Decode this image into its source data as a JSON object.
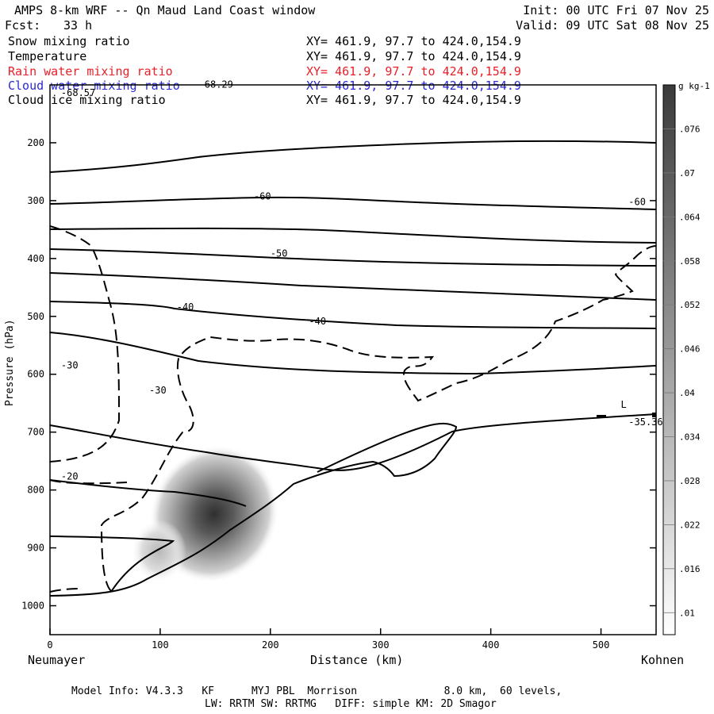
{
  "header": {
    "title": "AMPS 8-km WRF -- Qn Maud Land Coast window",
    "forecast_label": "Fcst:",
    "forecast_hour": "33 h",
    "init": "Init: 00 UTC Fri 07 Nov 25",
    "valid": "Valid: 09 UTC Sat 08 Nov 25"
  },
  "fields": [
    {
      "name": "Snow mixing ratio",
      "xy": "XY= 461.9, 97.7 to 424.0,154.9",
      "color": "#000000"
    },
    {
      "name": "Temperature",
      "xy": "XY= 461.9, 97.7 to 424.0,154.9",
      "color": "#000000"
    },
    {
      "name": "Rain water mixing ratio",
      "xy": "XY= 461.9, 97.7 to 424.0,154.9",
      "color": "#e8202a"
    },
    {
      "name": "Cloud water mixing ratio",
      "xy": "XY= 461.9, 97.7 to 424.0,154.9",
      "color": "#2a2ad0"
    },
    {
      "name": "Cloud ice mixing ratio",
      "xy": "XY= 461.9, 97.7 to 424.0,154.9",
      "color": "#000000"
    }
  ],
  "chart_data": {
    "type": "cross-section contour",
    "ylabel": "Pressure (hPa)",
    "xlabel": "Distance (km)",
    "x_ticks": [
      0,
      100,
      200,
      300,
      400,
      500
    ],
    "y_ticks": [
      200,
      300,
      400,
      500,
      600,
      700,
      800,
      900,
      1000
    ],
    "xlim": [
      0,
      550
    ],
    "ylim": [
      1050,
      100
    ],
    "left_station": "Neumayer",
    "right_station": "Kohnen",
    "temperature_labels": [
      {
        "text": "-68.29",
        "x": 135,
        "p": 105
      },
      {
        "text": "-68.57",
        "x": 10,
        "p": 119
      },
      {
        "text": "-60",
        "x": 185,
        "p": 298
      },
      {
        "text": "-60",
        "x": 525,
        "p": 308
      },
      {
        "text": "-50",
        "x": 200,
        "p": 397
      },
      {
        "text": "-40",
        "x": 115,
        "p": 489
      },
      {
        "text": "-40",
        "x": 235,
        "p": 514
      },
      {
        "text": "-30",
        "x": 10,
        "p": 590
      },
      {
        "text": "-30",
        "x": 90,
        "p": 633
      },
      {
        "text": "-20",
        "x": 10,
        "p": 782
      },
      {
        "text": "-35.36",
        "x": 525,
        "p": 688
      }
    ],
    "low_marker": {
      "text": "L",
      "x": 518,
      "p": 658
    },
    "colorbar": {
      "unit": "g kg-1",
      "levels": [
        ".01",
        ".016",
        ".022",
        ".028",
        ".034",
        ".04",
        ".046",
        ".052",
        ".058",
        ".064",
        ".07",
        ".076"
      ]
    },
    "shading_max": {
      "x": 155,
      "p": 855,
      "value": 0.076
    }
  },
  "footer": {
    "line1": "Model Info: V4.3.3   KF      MYJ PBL  Morrison              8.0 km,  60 levels,",
    "line2": "LW: RRTM SW: RRTMG   DIFF: simple KM: 2D Smagor"
  }
}
